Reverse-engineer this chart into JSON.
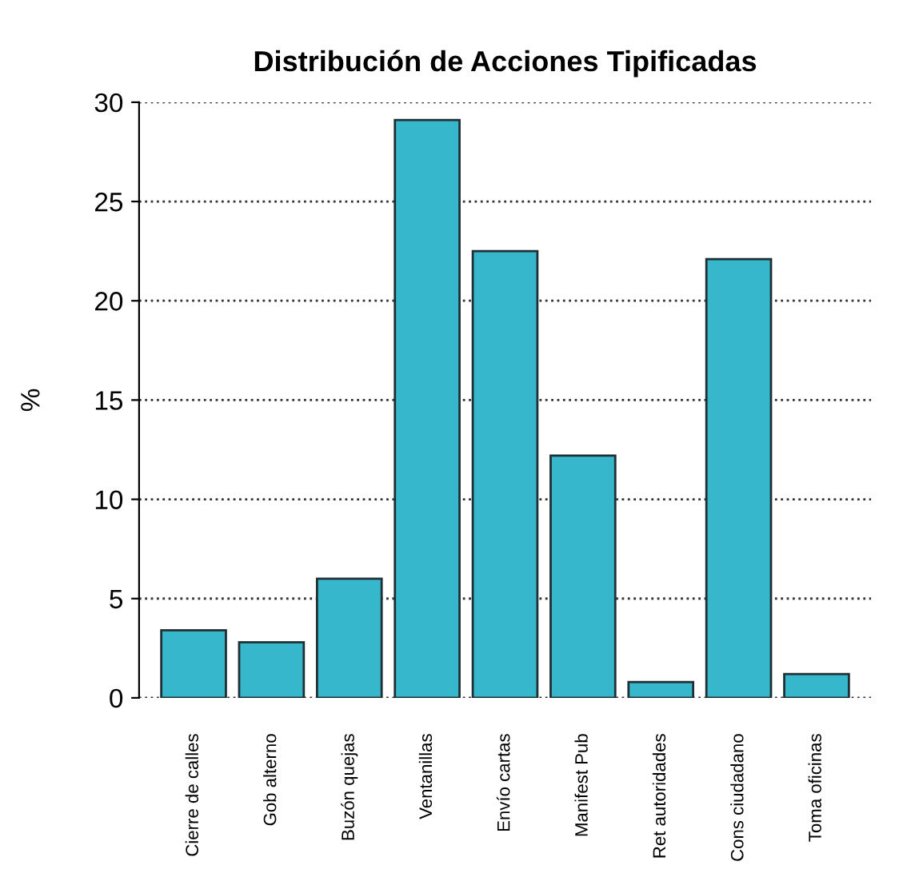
{
  "chart_data": {
    "type": "bar",
    "title": "Distribución de Acciones Tipificadas",
    "ylabel": "%",
    "categories": [
      "Cierre de calles",
      "Gob alterno",
      "Buzón quejas",
      "Ventanillas",
      "Envío cartas",
      "Manifest Pub",
      "Ret autoridades",
      "Cons ciudadano",
      "Toma oficinas"
    ],
    "values": [
      3.4,
      2.8,
      6.0,
      29.1,
      22.5,
      12.2,
      0.8,
      22.1,
      1.2
    ],
    "color": "#36b7cc",
    "ylim": [
      0,
      30
    ],
    "yticks": [
      0,
      5,
      10,
      15,
      20,
      25,
      30
    ],
    "grid": "y",
    "line_style": "dotted"
  }
}
